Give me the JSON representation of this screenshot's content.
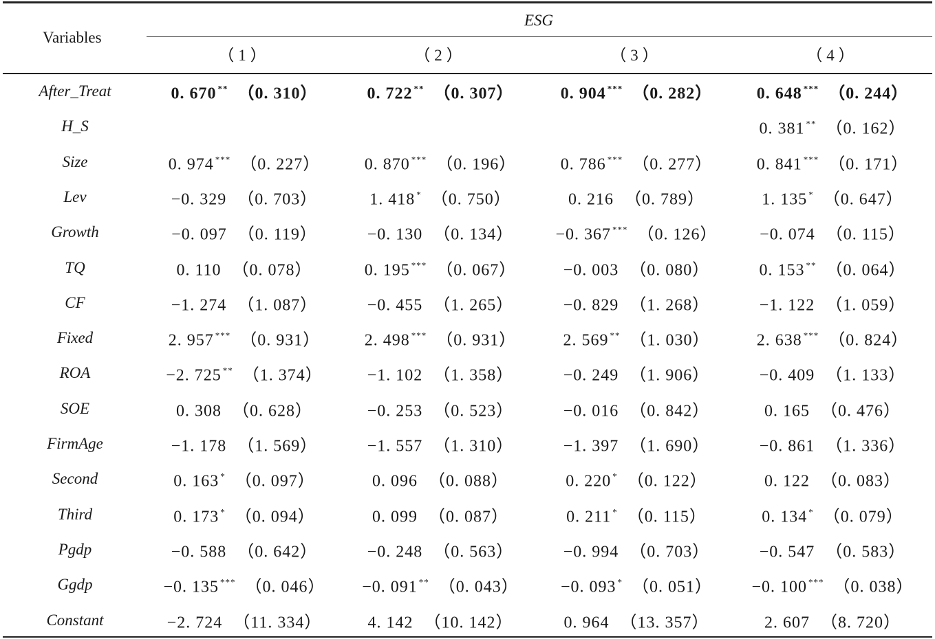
{
  "header": {
    "variables_label": "Variables",
    "group_label": "ESG",
    "columns": [
      "（1）",
      "（2）",
      "（3）",
      "（4）"
    ]
  },
  "rows": [
    {
      "name": "After_Treat",
      "bold": true,
      "cells": [
        {
          "coef": "0. 670",
          "stars": "**",
          "se": "（0. 310）"
        },
        {
          "coef": "0. 722",
          "stars": "**",
          "se": "（0. 307）"
        },
        {
          "coef": "0. 904",
          "stars": "***",
          "se": "（0. 282）"
        },
        {
          "coef": "0. 648",
          "stars": "***",
          "se": "（0. 244）"
        }
      ]
    },
    {
      "name": "H_S",
      "cells": [
        {
          "coef": "",
          "stars": "",
          "se": ""
        },
        {
          "coef": "",
          "stars": "",
          "se": ""
        },
        {
          "coef": "",
          "stars": "",
          "se": ""
        },
        {
          "coef": "0. 381",
          "stars": "**",
          "se": "（0. 162）"
        }
      ]
    },
    {
      "name": "Size",
      "cells": [
        {
          "coef": "0. 974",
          "stars": "***",
          "se": "（0. 227）"
        },
        {
          "coef": "0. 870",
          "stars": "***",
          "se": "（0. 196）"
        },
        {
          "coef": "0. 786",
          "stars": "***",
          "se": "（0. 277）"
        },
        {
          "coef": "0. 841",
          "stars": "***",
          "se": "（0. 171）"
        }
      ]
    },
    {
      "name": "Lev",
      "cells": [
        {
          "coef": "−0. 329",
          "stars": "",
          "se": "（0. 703）"
        },
        {
          "coef": "1. 418",
          "stars": "*",
          "se": "（0. 750）"
        },
        {
          "coef": "0. 216",
          "stars": "",
          "se": "（0. 789）"
        },
        {
          "coef": "1. 135",
          "stars": "*",
          "se": "（0. 647）"
        }
      ]
    },
    {
      "name": "Growth",
      "cells": [
        {
          "coef": "−0. 097",
          "stars": "",
          "se": "（0. 119）"
        },
        {
          "coef": "−0. 130",
          "stars": "",
          "se": "（0. 134）"
        },
        {
          "coef": "−0. 367",
          "stars": "***",
          "se": "（0. 126）"
        },
        {
          "coef": "−0. 074",
          "stars": "",
          "se": "（0. 115）"
        }
      ]
    },
    {
      "name": "TQ",
      "cells": [
        {
          "coef": "0. 110",
          "stars": "",
          "se": "（0. 078）"
        },
        {
          "coef": "0. 195",
          "stars": "***",
          "se": "（0. 067）"
        },
        {
          "coef": "−0. 003",
          "stars": "",
          "se": "（0. 080）"
        },
        {
          "coef": "0. 153",
          "stars": "**",
          "se": "（0. 064）"
        }
      ]
    },
    {
      "name": "CF",
      "cells": [
        {
          "coef": "−1. 274",
          "stars": "",
          "se": "（1. 087）"
        },
        {
          "coef": "−0. 455",
          "stars": "",
          "se": "（1. 265）"
        },
        {
          "coef": "−0. 829",
          "stars": "",
          "se": "（1. 268）"
        },
        {
          "coef": "−1. 122",
          "stars": "",
          "se": "（1. 059）"
        }
      ]
    },
    {
      "name": "Fixed",
      "cells": [
        {
          "coef": "2. 957",
          "stars": "***",
          "se": "（0. 931）"
        },
        {
          "coef": "2. 498",
          "stars": "***",
          "se": "（0. 931）"
        },
        {
          "coef": "2. 569",
          "stars": "**",
          "se": "（1. 030）"
        },
        {
          "coef": "2. 638",
          "stars": "***",
          "se": "（0. 824）"
        }
      ]
    },
    {
      "name": "ROA",
      "cells": [
        {
          "coef": "−2. 725",
          "stars": "**",
          "se": "（1. 374）"
        },
        {
          "coef": "−1. 102",
          "stars": "",
          "se": "（1. 358）"
        },
        {
          "coef": "−0. 249",
          "stars": "",
          "se": "（1. 906）"
        },
        {
          "coef": "−0. 409",
          "stars": "",
          "se": "（1. 133）"
        }
      ]
    },
    {
      "name": "SOE",
      "cells": [
        {
          "coef": "0. 308",
          "stars": "",
          "se": "（0. 628）"
        },
        {
          "coef": "−0. 253",
          "stars": "",
          "se": "（0. 523）"
        },
        {
          "coef": "−0. 016",
          "stars": "",
          "se": "（0. 842）"
        },
        {
          "coef": "0. 165",
          "stars": "",
          "se": "（0. 476）"
        }
      ]
    },
    {
      "name": "FirmAge",
      "cells": [
        {
          "coef": "−1. 178",
          "stars": "",
          "se": "（1. 569）"
        },
        {
          "coef": "−1. 557",
          "stars": "",
          "se": "（1. 310）"
        },
        {
          "coef": "−1. 397",
          "stars": "",
          "se": "（1. 690）"
        },
        {
          "coef": "−0. 861",
          "stars": "",
          "se": "（1. 336）"
        }
      ]
    },
    {
      "name": "Second",
      "cells": [
        {
          "coef": "0. 163",
          "stars": "*",
          "se": "（0. 097）"
        },
        {
          "coef": "0. 096",
          "stars": "",
          "se": "（0. 088）"
        },
        {
          "coef": "0. 220",
          "stars": "*",
          "se": "（0. 122）"
        },
        {
          "coef": "0. 122",
          "stars": "",
          "se": "（0. 083）"
        }
      ]
    },
    {
      "name": "Third",
      "cells": [
        {
          "coef": "0. 173",
          "stars": "*",
          "se": "（0. 094）"
        },
        {
          "coef": "0. 099",
          "stars": "",
          "se": "（0. 087）"
        },
        {
          "coef": "0. 211",
          "stars": "*",
          "se": "（0. 115）"
        },
        {
          "coef": "0. 134",
          "stars": "*",
          "se": "（0. 079）"
        }
      ]
    },
    {
      "name": "Pgdp",
      "cells": [
        {
          "coef": "−0. 588",
          "stars": "",
          "se": "（0. 642）"
        },
        {
          "coef": "−0. 248",
          "stars": "",
          "se": "（0. 563）"
        },
        {
          "coef": "−0. 994",
          "stars": "",
          "se": "（0. 703）"
        },
        {
          "coef": "−0. 547",
          "stars": "",
          "se": "（0. 583）"
        }
      ]
    },
    {
      "name": "Ggdp",
      "cells": [
        {
          "coef": "−0. 135",
          "stars": "***",
          "se": "（0. 046）"
        },
        {
          "coef": "−0. 091",
          "stars": "**",
          "se": "（0. 043）"
        },
        {
          "coef": "−0. 093",
          "stars": "*",
          "se": "（0. 051）"
        },
        {
          "coef": "−0. 100",
          "stars": "***",
          "se": "（0. 038）"
        }
      ]
    },
    {
      "name": "Constant",
      "cells": [
        {
          "coef": "−2. 724",
          "stars": "",
          "se": "（11. 334）"
        },
        {
          "coef": "4. 142",
          "stars": "",
          "se": "（10. 142）"
        },
        {
          "coef": "0. 964",
          "stars": "",
          "se": "（13. 357）"
        },
        {
          "coef": "2. 607",
          "stars": "",
          "se": "（8. 720）"
        }
      ]
    }
  ]
}
